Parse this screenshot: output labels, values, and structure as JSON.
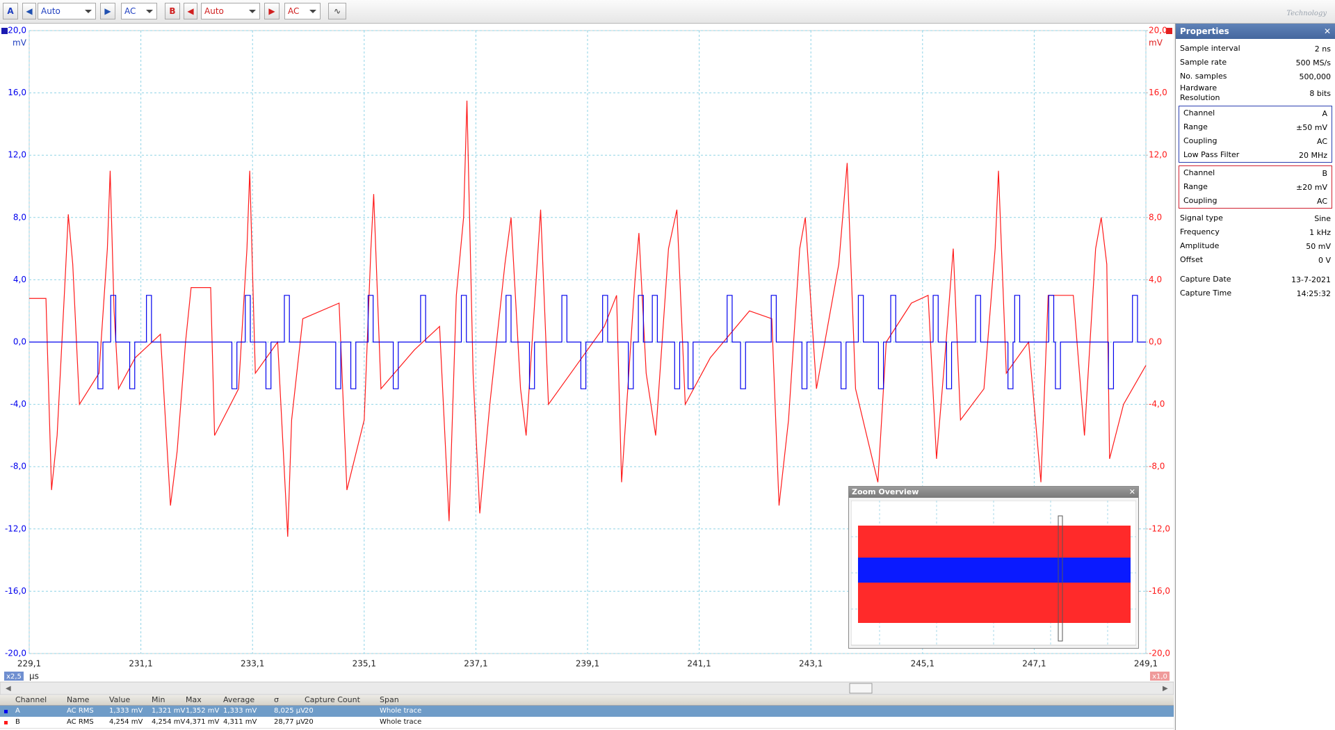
{
  "toolbar": {
    "range_a": "Auto",
    "coupling_a": "AC",
    "range_b": "Auto",
    "coupling_b": "AC"
  },
  "branding": "Technology",
  "chart_data": {
    "type": "line",
    "y_unit": "mV",
    "y2_unit": "mV",
    "x_unit": "µs",
    "xlim": [
      229.1,
      249.1
    ],
    "xticks": [
      {
        "value": 229.1,
        "label": "229,1"
      },
      {
        "value": 231.1,
        "label": "231,1"
      },
      {
        "value": 233.1,
        "label": "233,1"
      },
      {
        "value": 235.1,
        "label": "235,1"
      },
      {
        "value": 237.1,
        "label": "237,1"
      },
      {
        "value": 239.1,
        "label": "239,1"
      },
      {
        "value": 241.1,
        "label": "241,1"
      },
      {
        "value": 243.1,
        "label": "243,1"
      },
      {
        "value": 245.1,
        "label": "245,1"
      },
      {
        "value": 247.1,
        "label": "247,1"
      },
      {
        "value": 249.1,
        "label": "249,1"
      }
    ],
    "ylim": [
      -20,
      20
    ],
    "yticks": [
      {
        "value": 20,
        "label": "20,0"
      },
      {
        "value": 16,
        "label": "16,0"
      },
      {
        "value": 12,
        "label": "12,0"
      },
      {
        "value": 8,
        "label": "8,0"
      },
      {
        "value": 4,
        "label": "4,0"
      },
      {
        "value": 0,
        "label": "0,0"
      },
      {
        "value": -4,
        "label": "-4,0"
      },
      {
        "value": -8,
        "label": "-8,0"
      },
      {
        "value": -12,
        "label": "-12,0"
      },
      {
        "value": -16,
        "label": "-16,0"
      },
      {
        "value": -20,
        "label": "-20,0"
      }
    ],
    "y2lim": [
      -20,
      20
    ],
    "y2ticks": [
      {
        "value": 20,
        "label": "20,0"
      },
      {
        "value": 16,
        "label": "16,0"
      },
      {
        "value": 12,
        "label": "12,0"
      },
      {
        "value": 8,
        "label": "8,0"
      },
      {
        "value": 4,
        "label": "4,0"
      },
      {
        "value": 0,
        "label": "0,0"
      },
      {
        "value": -4,
        "label": "-4,0"
      },
      {
        "value": -8,
        "label": "-8,0"
      },
      {
        "value": -12,
        "label": "-12,0"
      },
      {
        "value": -16,
        "label": "-16,0"
      },
      {
        "value": -20,
        "label": "-20,0"
      }
    ],
    "grid": true,
    "zoom_left": "x2,5",
    "zoom_right": "x1,0",
    "series": [
      {
        "name": "A",
        "color": "#0000ee",
        "x": [
          229.1,
          230.33,
          230.33,
          230.42,
          230.42,
          230.56,
          230.56,
          230.65,
          230.65,
          230.9,
          230.9,
          230.99,
          230.99,
          231.2,
          231.2,
          231.29,
          231.29,
          232.73,
          232.73,
          232.82,
          232.82,
          232.97,
          232.97,
          233.06,
          233.06,
          233.34,
          233.34,
          233.43,
          233.43,
          233.67,
          233.67,
          233.76,
          233.76,
          234.59,
          234.59,
          234.68,
          234.68,
          234.86,
          234.86,
          234.95,
          234.95,
          235.17,
          235.17,
          235.26,
          235.26,
          235.62,
          235.62,
          235.71,
          235.71,
          236.11,
          236.11,
          236.2,
          236.2,
          236.84,
          236.84,
          236.93,
          236.93,
          237.64,
          237.64,
          237.73,
          237.73,
          238.06,
          238.06,
          238.15,
          238.15,
          238.64,
          238.64,
          238.73,
          238.73,
          238.98,
          238.98,
          239.07,
          239.07,
          239.37,
          239.37,
          239.46,
          239.46,
          239.83,
          239.83,
          239.92,
          239.92,
          240.01,
          240.01,
          240.1,
          240.1,
          240.26,
          240.26,
          240.35,
          240.35,
          240.66,
          240.66,
          240.75,
          240.75,
          240.9,
          240.9,
          240.99,
          240.99,
          241.6,
          241.6,
          241.69,
          241.69,
          241.84,
          241.84,
          241.93,
          241.93,
          242.39,
          242.39,
          242.48,
          242.48,
          242.94,
          242.94,
          243.03,
          243.03,
          243.64,
          243.64,
          243.73,
          243.73,
          243.95,
          243.95,
          244.04,
          244.04,
          244.31,
          244.31,
          244.4,
          244.4,
          244.53,
          244.53,
          244.62,
          244.62,
          245.29,
          245.29,
          245.38,
          245.38,
          245.53,
          245.53,
          245.62,
          245.62,
          246.05,
          246.05,
          246.14,
          246.14,
          246.63,
          246.63,
          246.72,
          246.72,
          246.75,
          246.75,
          246.84,
          246.84,
          247.36,
          247.36,
          247.45,
          247.45,
          247.48,
          247.48,
          247.57,
          247.57,
          248.43,
          248.43,
          248.52,
          248.52,
          248.86,
          248.86,
          248.95,
          248.95,
          249.1
        ],
        "values": [
          0,
          0,
          -3,
          -3,
          0,
          0,
          3,
          3,
          0,
          0,
          -3,
          -3,
          0,
          0,
          3,
          3,
          0,
          0,
          -3,
          -3,
          0,
          0,
          3,
          3,
          0,
          0,
          -3,
          -3,
          0,
          0,
          3,
          3,
          0,
          0,
          -3,
          -3,
          0,
          0,
          -3,
          -3,
          0,
          0,
          3,
          3,
          0,
          0,
          -3,
          -3,
          0,
          0,
          3,
          3,
          0,
          0,
          3,
          3,
          0,
          0,
          3,
          3,
          0,
          0,
          -3,
          -3,
          0,
          0,
          3,
          3,
          0,
          0,
          -3,
          -3,
          0,
          0,
          3,
          3,
          0,
          0,
          -3,
          -3,
          0,
          0,
          3,
          3,
          0,
          0,
          3,
          3,
          0,
          0,
          -3,
          -3,
          0,
          0,
          -3,
          -3,
          0,
          0,
          3,
          3,
          0,
          0,
          -3,
          -3,
          0,
          0,
          3,
          3,
          0,
          0,
          -3,
          -3,
          0,
          0,
          -3,
          -3,
          0,
          0,
          3,
          3,
          0,
          0,
          -3,
          -3,
          0,
          0,
          3,
          3,
          0,
          0,
          3,
          3,
          0,
          0,
          -3,
          -3,
          0,
          0,
          3,
          3,
          0,
          0,
          -3,
          -3,
          0,
          0,
          3,
          3,
          0,
          0,
          3,
          3,
          0,
          0,
          -3,
          -3,
          0,
          0,
          -3,
          -3,
          0,
          0,
          3,
          3,
          0,
          0
        ]
      },
      {
        "name": "B",
        "color": "#ff1a1a",
        "axis": "y2",
        "x": [
          229.1,
          229.4,
          229.5,
          229.6,
          229.75,
          229.8,
          229.88,
          230.0,
          230.35,
          230.5,
          230.55,
          230.62,
          230.7,
          231.0,
          231.45,
          231.63,
          231.75,
          231.9,
          232.0,
          232.35,
          232.42,
          232.85,
          233.0,
          233.05,
          233.15,
          233.55,
          233.73,
          233.8,
          234.0,
          234.65,
          234.79,
          235.1,
          235.22,
          235.27,
          235.4,
          236.0,
          236.45,
          236.62,
          236.75,
          236.88,
          236.94,
          237.05,
          237.17,
          237.35,
          237.62,
          237.73,
          237.9,
          238.0,
          238.26,
          238.4,
          238.8,
          239.4,
          239.62,
          239.71,
          239.95,
          240.02,
          240.15,
          240.32,
          240.55,
          240.7,
          240.85,
          241.3,
          242.0,
          242.4,
          242.53,
          242.7,
          242.9,
          243.0,
          243.2,
          243.6,
          243.75,
          243.9,
          244.3,
          244.45,
          244.9,
          245.2,
          245.35,
          245.5,
          245.65,
          245.78,
          246.2,
          246.4,
          246.46,
          246.6,
          247.0,
          247.22,
          247.35,
          247.8,
          248.0,
          248.2,
          248.3,
          248.4,
          248.45,
          248.7,
          249.1
        ],
        "values": [
          2.8,
          2.8,
          -9.5,
          -6,
          4.5,
          8.2,
          5,
          -4,
          -2,
          6,
          11,
          2,
          -3,
          -1,
          0.5,
          -10.5,
          -7,
          0,
          3.5,
          3.5,
          -6,
          -3,
          6,
          11,
          -2,
          0,
          -12.5,
          -5,
          1.5,
          2.5,
          -9.5,
          -5,
          6,
          9.5,
          -3,
          -0.5,
          1,
          -11.5,
          3,
          8,
          15.5,
          -2,
          -11,
          -4,
          5,
          8,
          -3,
          -6,
          8.5,
          -4,
          -2,
          1,
          3,
          -9,
          4,
          7,
          -2,
          -6,
          6,
          8.5,
          -4,
          -1,
          2,
          1.5,
          -10.5,
          -5,
          6,
          8,
          -3,
          5,
          11.5,
          -3,
          -9,
          0,
          2.5,
          3,
          -7.5,
          -1,
          6,
          -5,
          -3,
          6,
          11,
          -2,
          0,
          -9,
          3,
          3,
          -6,
          6,
          8,
          5,
          -7.5,
          -4,
          -1.5
        ]
      }
    ]
  },
  "zoom_overview": {
    "title": "Zoom Overview"
  },
  "properties": {
    "title": "Properties",
    "general": [
      [
        "Sample interval",
        "2 ns"
      ],
      [
        "Sample rate",
        "500 MS/s"
      ],
      [
        "No. samples",
        "500,000"
      ],
      [
        "Hardware Resolution",
        "8 bits"
      ]
    ],
    "channel_a": [
      [
        "Channel",
        "A"
      ],
      [
        "Range",
        "±50 mV"
      ],
      [
        "Coupling",
        "AC"
      ],
      [
        "Low Pass Filter",
        "20 MHz"
      ]
    ],
    "channel_b": [
      [
        "Channel",
        "B"
      ],
      [
        "Range",
        "±20 mV"
      ],
      [
        "Coupling",
        "AC"
      ]
    ],
    "signal": [
      [
        "Signal type",
        "Sine"
      ],
      [
        "Frequency",
        "1 kHz"
      ],
      [
        "Amplitude",
        "50 mV"
      ],
      [
        "Offset",
        "0 V"
      ]
    ],
    "capture": [
      [
        "Capture Date",
        "13-7-2021"
      ],
      [
        "Capture Time",
        "14:25:32"
      ]
    ]
  },
  "measurements": {
    "columns": [
      "Channel",
      "Name",
      "Value",
      "Min",
      "Max",
      "Average",
      "σ",
      "Capture Count",
      "Span"
    ],
    "rows": [
      [
        "A",
        "AC RMS",
        "1,333 mV",
        "1,321 mV",
        "1,352 mV",
        "1,333 mV",
        "8,025 µV",
        "20",
        "Whole trace"
      ],
      [
        "B",
        "AC RMS",
        "4,254 mV",
        "4,254 mV",
        "4,371 mV",
        "4,311 mV",
        "28,77 µV",
        "20",
        "Whole trace"
      ]
    ]
  }
}
